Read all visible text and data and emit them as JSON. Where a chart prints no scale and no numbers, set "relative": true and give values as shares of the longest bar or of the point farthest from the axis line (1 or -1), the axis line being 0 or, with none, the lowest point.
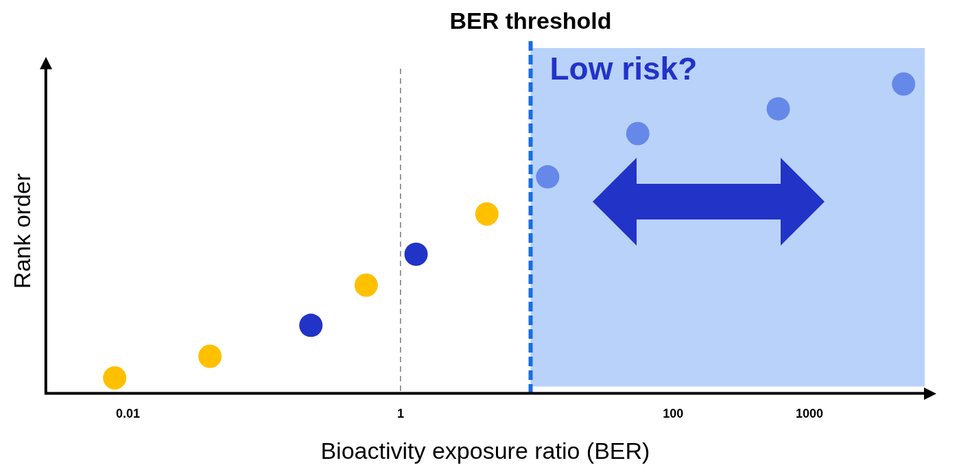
{
  "chart_data": {
    "type": "scatter",
    "relative": true,
    "xlabel": "Bioactivity exposure ratio (BER)",
    "ylabel": "Rank order",
    "log": "x",
    "xlim": [
      0.0025,
      7000
    ],
    "xticks": [
      {
        "value": 0.01,
        "label": "0.01"
      },
      {
        "value": 1,
        "label": "1"
      },
      {
        "value": 100,
        "label": "100"
      },
      {
        "value": 1000,
        "label": "1000"
      }
    ],
    "series": [
      {
        "color": "#ffc000",
        "x": [
          0.008,
          0.04,
          0.56,
          4.3
        ],
        "values": [
          0.05,
          0.12,
          0.35,
          0.58
        ]
      },
      {
        "color": "#2233c8",
        "x": [
          0.22,
          1.3
        ],
        "values": [
          0.22,
          0.45
        ]
      },
      {
        "color": "#6688e8",
        "x": [
          12,
          55,
          590,
          4900
        ],
        "values": [
          0.7,
          0.84,
          0.92,
          1
        ]
      }
    ],
    "ref_lines": [
      {
        "axis": "x",
        "value": 1,
        "color": "#555555",
        "line_style": "dashed"
      },
      {
        "axis": "x",
        "value": 9,
        "label": "BER threshold",
        "color": "#1a6ee0",
        "line_style": "dashed"
      }
    ],
    "bands": [
      {
        "axis": "x",
        "from": 9,
        "to": 7000,
        "color": "#b8d2fa"
      }
    ],
    "annotations": [
      "Low risk?"
    ],
    "grid": false,
    "legend": false,
    "marker": "circle"
  }
}
